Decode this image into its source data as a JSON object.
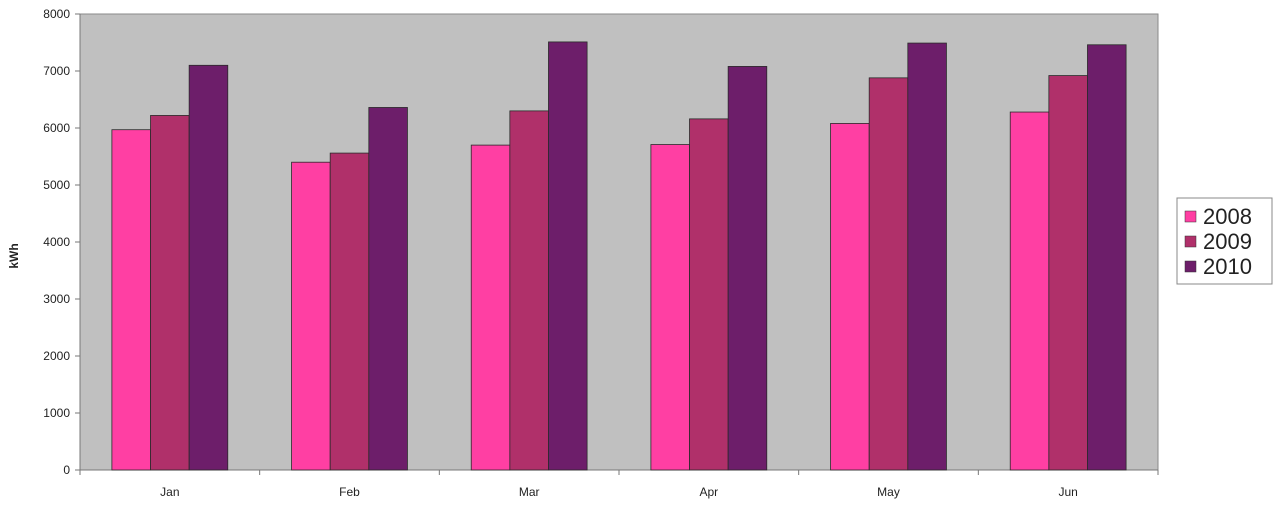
{
  "chart_data": {
    "type": "bar",
    "title": "",
    "xlabel": "",
    "ylabel": "kWh",
    "ylim": [
      0,
      8000
    ],
    "yticks": [
      0,
      1000,
      2000,
      3000,
      4000,
      5000,
      6000,
      7000,
      8000
    ],
    "ytick_labels": [
      "0",
      "1000",
      "2000",
      "3000",
      "4000",
      "5000",
      "6000",
      "7000",
      "8000"
    ],
    "categories": [
      "Jan",
      "Feb",
      "Mar",
      "Apr",
      "May",
      "Jun"
    ],
    "series": [
      {
        "name": "2008",
        "color": "#ff3fa3",
        "values": [
          5970,
          5400,
          5700,
          5710,
          6080,
          6280
        ]
      },
      {
        "name": "2009",
        "color": "#b0306a",
        "values": [
          6220,
          5560,
          6300,
          6160,
          6880,
          6920
        ]
      },
      {
        "name": "2010",
        "color": "#6d1e6a",
        "values": [
          7100,
          6360,
          7510,
          7080,
          7490,
          7460
        ]
      }
    ],
    "grid": false,
    "legend_position": "right",
    "plot_background": "#c0c0c0"
  }
}
